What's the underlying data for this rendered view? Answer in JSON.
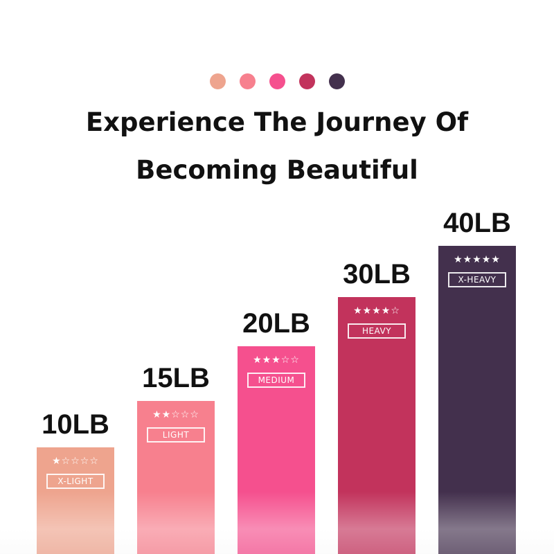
{
  "header": {
    "dot_colors": [
      "#eea48e",
      "#f7808e",
      "#f5508e",
      "#c2335c",
      "#43304d"
    ],
    "title_line1": "Experience The Journey Of",
    "title_line2": "Becoming Beautiful"
  },
  "bands": [
    {
      "weight": "10LB",
      "level": "X-LIGHT",
      "stars": 1,
      "max_stars": 5,
      "color": "#eea48e"
    },
    {
      "weight": "15LB",
      "level": "LIGHT",
      "stars": 2,
      "max_stars": 5,
      "color": "#f7808e"
    },
    {
      "weight": "20LB",
      "level": "MEDIUM",
      "stars": 3,
      "max_stars": 5,
      "color": "#f5508e"
    },
    {
      "weight": "30LB",
      "level": "HEAVY",
      "stars": 4,
      "max_stars": 5,
      "color": "#c2335c"
    },
    {
      "weight": "40LB",
      "level": "X-HEAVY",
      "stars": 5,
      "max_stars": 5,
      "color": "#43304d"
    }
  ]
}
